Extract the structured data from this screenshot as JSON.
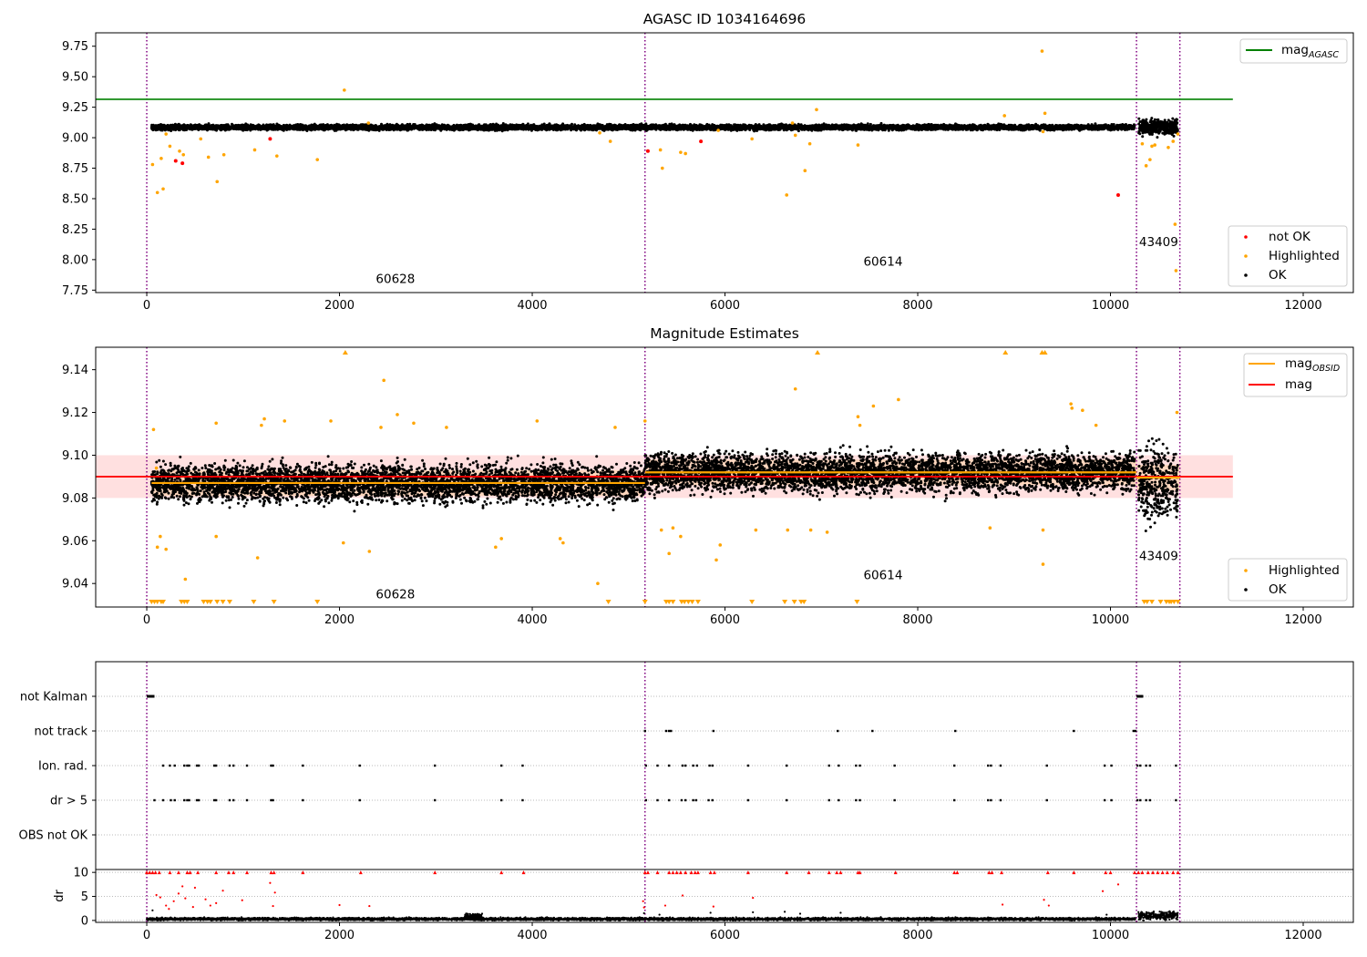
{
  "chart_data": [
    {
      "type": "scatter",
      "title": "AGASC ID 1034164696",
      "xlim": [
        -530,
        12520
      ],
      "ylim": [
        7.73,
        9.86
      ],
      "xticks": [
        "0",
        "2000",
        "4000",
        "6000",
        "8000",
        "10000",
        "12000"
      ],
      "yticks": [
        "7.75",
        "8.00",
        "8.25",
        "8.50",
        "8.75",
        "9.00",
        "9.25",
        "9.50",
        "9.75"
      ],
      "mag_agasc": 9.315,
      "mag_agasc_x_range": [
        -530,
        11270
      ],
      "obsid_boundaries": [
        0,
        5170,
        10270,
        10720
      ],
      "obsid_labels": [
        {
          "text": "60628",
          "x": 2580,
          "y": 7.81
        },
        {
          "text": "60614",
          "x": 7640,
          "y": 7.95
        },
        {
          "text": "43409",
          "x": 10500,
          "y": 8.11
        }
      ],
      "series": [
        {
          "name": "not OK",
          "color": "#ff0000",
          "points": [
            [
              300,
              8.81
            ],
            [
              370,
              8.79
            ],
            [
              1280,
              8.99
            ],
            [
              5200,
              8.89
            ],
            [
              5750,
              8.97
            ],
            [
              10080,
              8.53
            ]
          ]
        },
        {
          "name": "Highlighted",
          "color": "#ffa500",
          "points": [
            [
              60,
              8.78
            ],
            [
              110,
              8.55
            ],
            [
              150,
              8.83
            ],
            [
              170,
              8.58
            ],
            [
              200,
              9.03
            ],
            [
              240,
              8.93
            ],
            [
              340,
              8.89
            ],
            [
              380,
              8.86
            ],
            [
              560,
              8.99
            ],
            [
              640,
              8.84
            ],
            [
              730,
              8.64
            ],
            [
              800,
              8.86
            ],
            [
              2050,
              9.39
            ],
            [
              1770,
              8.82
            ],
            [
              1350,
              8.85
            ],
            [
              1120,
              8.9
            ],
            [
              2300,
              9.12
            ],
            [
              4700,
              9.04
            ],
            [
              4810,
              8.97
            ],
            [
              5330,
              8.9
            ],
            [
              5350,
              8.75
            ],
            [
              5540,
              8.88
            ],
            [
              5590,
              8.87
            ],
            [
              5930,
              9.06
            ],
            [
              6280,
              8.99
            ],
            [
              6640,
              8.53
            ],
            [
              6700,
              9.12
            ],
            [
              6730,
              9.02
            ],
            [
              6830,
              8.73
            ],
            [
              6880,
              8.95
            ],
            [
              6950,
              9.23
            ],
            [
              7380,
              8.94
            ],
            [
              8900,
              9.18
            ],
            [
              9290,
              9.71
            ],
            [
              9320,
              9.2
            ],
            [
              9300,
              9.05
            ],
            [
              10330,
              8.95
            ],
            [
              10370,
              8.77
            ],
            [
              10410,
              8.82
            ],
            [
              10430,
              8.93
            ],
            [
              10460,
              8.94
            ],
            [
              10600,
              8.92
            ],
            [
              10650,
              8.97
            ],
            [
              10670,
              8.29
            ],
            [
              10680,
              7.91
            ],
            [
              10700,
              9.03
            ]
          ]
        },
        {
          "name": "OK",
          "color": "#000000",
          "band_segments": [
            {
              "x0": 50,
              "x1": 10250,
              "y": 9.085,
              "spread": 0.02
            },
            {
              "x0": 10290,
              "x1": 10700,
              "y": 9.09,
              "spread": 0.06
            }
          ]
        }
      ],
      "legend_top": {
        "label": "mag",
        "subscript": "AGASC",
        "color": "#008000"
      },
      "legend_bottom": [
        {
          "label": "not OK",
          "color": "#ff0000"
        },
        {
          "label": "Highlighted",
          "color": "#ffa500"
        },
        {
          "label": "OK",
          "color": "#000000"
        }
      ]
    },
    {
      "type": "scatter",
      "title": "Magnitude Estimates",
      "xlim": [
        -530,
        12520
      ],
      "ylim": [
        9.029,
        9.1505
      ],
      "xticks": [
        "0",
        "2000",
        "4000",
        "6000",
        "8000",
        "10000",
        "12000"
      ],
      "yticks": [
        "9.04",
        "9.06",
        "9.08",
        "9.10",
        "9.12",
        "9.14"
      ],
      "mag": 9.09,
      "mag_band": [
        9.08,
        9.1
      ],
      "mag_x_range": [
        -530,
        11270
      ],
      "mag_obsid": [
        {
          "x0": 50,
          "x1": 5170,
          "y": 9.087
        },
        {
          "x0": 5170,
          "x1": 10270,
          "y": 9.092
        },
        {
          "x0": 10270,
          "x1": 10720,
          "y": 9.0895
        }
      ],
      "obsid_boundaries": [
        0,
        5170,
        10270,
        10720
      ],
      "obsid_labels": [
        {
          "text": "60628",
          "x": 2580,
          "y": 9.033
        },
        {
          "text": "60614",
          "x": 7640,
          "y": 9.042
        },
        {
          "text": "43409",
          "x": 10500,
          "y": 9.051
        }
      ],
      "series": [
        {
          "name": "Highlighted",
          "color": "#ffa500",
          "points": [
            [
              70,
              9.112
            ],
            [
              100,
              9.094
            ],
            [
              140,
              9.062
            ],
            [
              110,
              9.057
            ],
            [
              200,
              9.056
            ],
            [
              400,
              9.042
            ],
            [
              720,
              9.062
            ],
            [
              720,
              9.115
            ],
            [
              1150,
              9.052
            ],
            [
              1190,
              9.114
            ],
            [
              1220,
              9.117
            ],
            [
              1430,
              9.116
            ],
            [
              1910,
              9.116
            ],
            [
              2040,
              9.059
            ],
            [
              2310,
              9.055
            ],
            [
              2430,
              9.113
            ],
            [
              2460,
              9.135
            ],
            [
              2600,
              9.119
            ],
            [
              2770,
              9.115
            ],
            [
              3110,
              9.113
            ],
            [
              3620,
              9.057
            ],
            [
              3680,
              9.061
            ],
            [
              4050,
              9.116
            ],
            [
              4290,
              9.061
            ],
            [
              4320,
              9.059
            ],
            [
              4680,
              9.04
            ],
            [
              4860,
              9.113
            ],
            [
              5170,
              9.116
            ],
            [
              5340,
              9.065
            ],
            [
              5420,
              9.054
            ],
            [
              5460,
              9.066
            ],
            [
              5540,
              9.062
            ],
            [
              5950,
              9.058
            ],
            [
              5910,
              9.051
            ],
            [
              6320,
              9.065
            ],
            [
              6650,
              9.065
            ],
            [
              6730,
              9.131
            ],
            [
              6890,
              9.065
            ],
            [
              7060,
              9.064
            ],
            [
              7380,
              9.118
            ],
            [
              7400,
              9.114
            ],
            [
              7540,
              9.123
            ],
            [
              7800,
              9.126
            ],
            [
              8750,
              9.066
            ],
            [
              9300,
              9.065
            ],
            [
              9300,
              9.049
            ],
            [
              9590,
              9.124
            ],
            [
              9600,
              9.122
            ],
            [
              9710,
              9.121
            ],
            [
              9850,
              9.114
            ],
            [
              10690,
              9.12
            ]
          ]
        },
        {
          "name": "OK",
          "color": "#000000",
          "band_segments": [
            {
              "x0": 50,
              "x1": 5170,
              "y": 9.087,
              "spread": 0.008
            },
            {
              "x0": 5170,
              "x1": 10250,
              "y": 9.092,
              "spread": 0.0085
            },
            {
              "x0": 10290,
              "x1": 10700,
              "y": 9.087,
              "spread": 0.016
            }
          ]
        }
      ],
      "clipped_markers": {
        "bottom_x": [
          50,
          80,
          110,
          150,
          170,
          360,
          390,
          420,
          590,
          630,
          660,
          730,
          790,
          860,
          1110,
          1320,
          1770,
          4790,
          5170,
          5390,
          5420,
          5460,
          5550,
          5580,
          5620,
          5660,
          5720,
          6280,
          6620,
          6720,
          6790,
          6820,
          7370,
          10350,
          10380,
          10430,
          10520,
          10580,
          10610,
          10630,
          10660,
          10700
        ],
        "top_x": [
          2060,
          6960,
          8910,
          9290,
          9320
        ]
      },
      "legend_top": [
        {
          "label": "mag",
          "subscript": "OBSID",
          "color": "#ffa500"
        },
        {
          "label": "mag",
          "subscript": "",
          "color": "#ff0000"
        }
      ],
      "legend_bottom": [
        {
          "label": "Highlighted",
          "color": "#ffa500"
        },
        {
          "label": "OK",
          "color": "#000000"
        }
      ]
    },
    {
      "type": "scatter",
      "xlim": [
        -530,
        12520
      ],
      "categories": [
        "not Kalman",
        "not track",
        "Ion. rad.",
        "dr > 5",
        "OBS not OK"
      ],
      "flags": {
        "not Kalman": [
          {
            "x0": 0,
            "x1": 80
          },
          {
            "x0": 10270,
            "x1": 10340
          }
        ],
        "not track": [
          5170,
          5390,
          5420,
          5440,
          5880,
          7170,
          7530,
          8390,
          9620,
          10240,
          10260
        ],
        "Ion. rad.": [
          170,
          240,
          290,
          390,
          420,
          440,
          520,
          540,
          700,
          720,
          860,
          900,
          1040,
          1290,
          1310,
          1620,
          2210,
          2990,
          3680,
          3900,
          5180,
          5300,
          5420,
          5560,
          5590,
          5670,
          5710,
          5840,
          5870,
          6240,
          6640,
          7080,
          7180,
          7360,
          7400,
          7760,
          8380,
          8730,
          8760,
          8860,
          9340,
          9940,
          10010,
          10280,
          10310,
          10370,
          10410,
          10680
        ],
        "dr > 5": [
          80,
          170,
          250,
          290,
          390,
          420,
          440,
          520,
          540,
          700,
          720,
          860,
          900,
          1040,
          1290,
          1310,
          1620,
          2210,
          2990,
          3680,
          3900,
          5180,
          5300,
          5420,
          5550,
          5590,
          5670,
          5700,
          5830,
          5870,
          6240,
          6640,
          7080,
          7180,
          7360,
          7400,
          7760,
          8380,
          8730,
          8760,
          8860,
          9340,
          9940,
          10010,
          10280,
          10310,
          10370,
          10410,
          10680
        ],
        "OBS not OK": []
      },
      "obsid_boundaries": [
        0,
        5170,
        10270,
        10720
      ]
    },
    {
      "type": "scatter",
      "xlim": [
        -530,
        12520
      ],
      "ylim": [
        -0.4,
        10.6
      ],
      "ylabel": "dr",
      "xticks": [
        "0",
        "2000",
        "4000",
        "6000",
        "8000",
        "10000",
        "12000"
      ],
      "yticks": [
        "0",
        "5",
        "10"
      ],
      "red_clipped_x": [
        0,
        30,
        60,
        90,
        130,
        240,
        330,
        420,
        450,
        530,
        720,
        850,
        900,
        1040,
        1290,
        1320,
        1620,
        2220,
        2990,
        3680,
        3910,
        5170,
        5200,
        5300,
        5420,
        5460,
        5500,
        5540,
        5590,
        5650,
        5690,
        5720,
        5850,
        5890,
        6240,
        6640,
        6870,
        7080,
        7160,
        7200,
        7380,
        7400,
        7770,
        8380,
        8410,
        8740,
        8770,
        8870,
        9350,
        9620,
        9950,
        10000,
        10250,
        10290,
        10330,
        10390,
        10440,
        10490,
        10540,
        10590,
        10650,
        10700
      ],
      "red_points": [
        [
          100,
          5.3
        ],
        [
          140,
          4.8
        ],
        [
          200,
          3.1
        ],
        [
          230,
          2.4
        ],
        [
          280,
          4.0
        ],
        [
          330,
          5.6
        ],
        [
          370,
          7.1
        ],
        [
          400,
          4.6
        ],
        [
          480,
          2.8
        ],
        [
          500,
          6.8
        ],
        [
          610,
          4.4
        ],
        [
          660,
          3.1
        ],
        [
          720,
          3.6
        ],
        [
          790,
          6.2
        ],
        [
          990,
          4.2
        ],
        [
          1280,
          7.8
        ],
        [
          1310,
          3.0
        ],
        [
          1330,
          5.8
        ],
        [
          2000,
          3.2
        ],
        [
          2310,
          3.0
        ],
        [
          5150,
          4.0
        ],
        [
          5160,
          2.7
        ],
        [
          5380,
          3.1
        ],
        [
          5560,
          5.2
        ],
        [
          5880,
          2.9
        ],
        [
          6290,
          4.7
        ],
        [
          8880,
          3.3
        ],
        [
          9310,
          4.3
        ],
        [
          9360,
          3.1
        ],
        [
          9920,
          6.1
        ],
        [
          10080,
          7.5
        ]
      ],
      "black_segments": [
        {
          "x0": 0,
          "x1": 10260,
          "y": 0.3,
          "spread": 0.25
        },
        {
          "x0": 3300,
          "x1": 3480,
          "y": 0.9,
          "spread": 0.6
        },
        {
          "x0": 10290,
          "x1": 10700,
          "y": 1.0,
          "spread": 0.8
        }
      ],
      "black_scatter": [
        [
          60,
          2.1
        ],
        [
          5160,
          1.5
        ],
        [
          5320,
          1.2
        ],
        [
          5850,
          1.6
        ],
        [
          6290,
          1.7
        ],
        [
          6620,
          1.8
        ],
        [
          6780,
          1.4
        ],
        [
          7200,
          1.6
        ],
        [
          9960,
          1.2
        ]
      ],
      "obsid_boundaries": [
        0,
        5170,
        10270,
        10720
      ]
    }
  ]
}
